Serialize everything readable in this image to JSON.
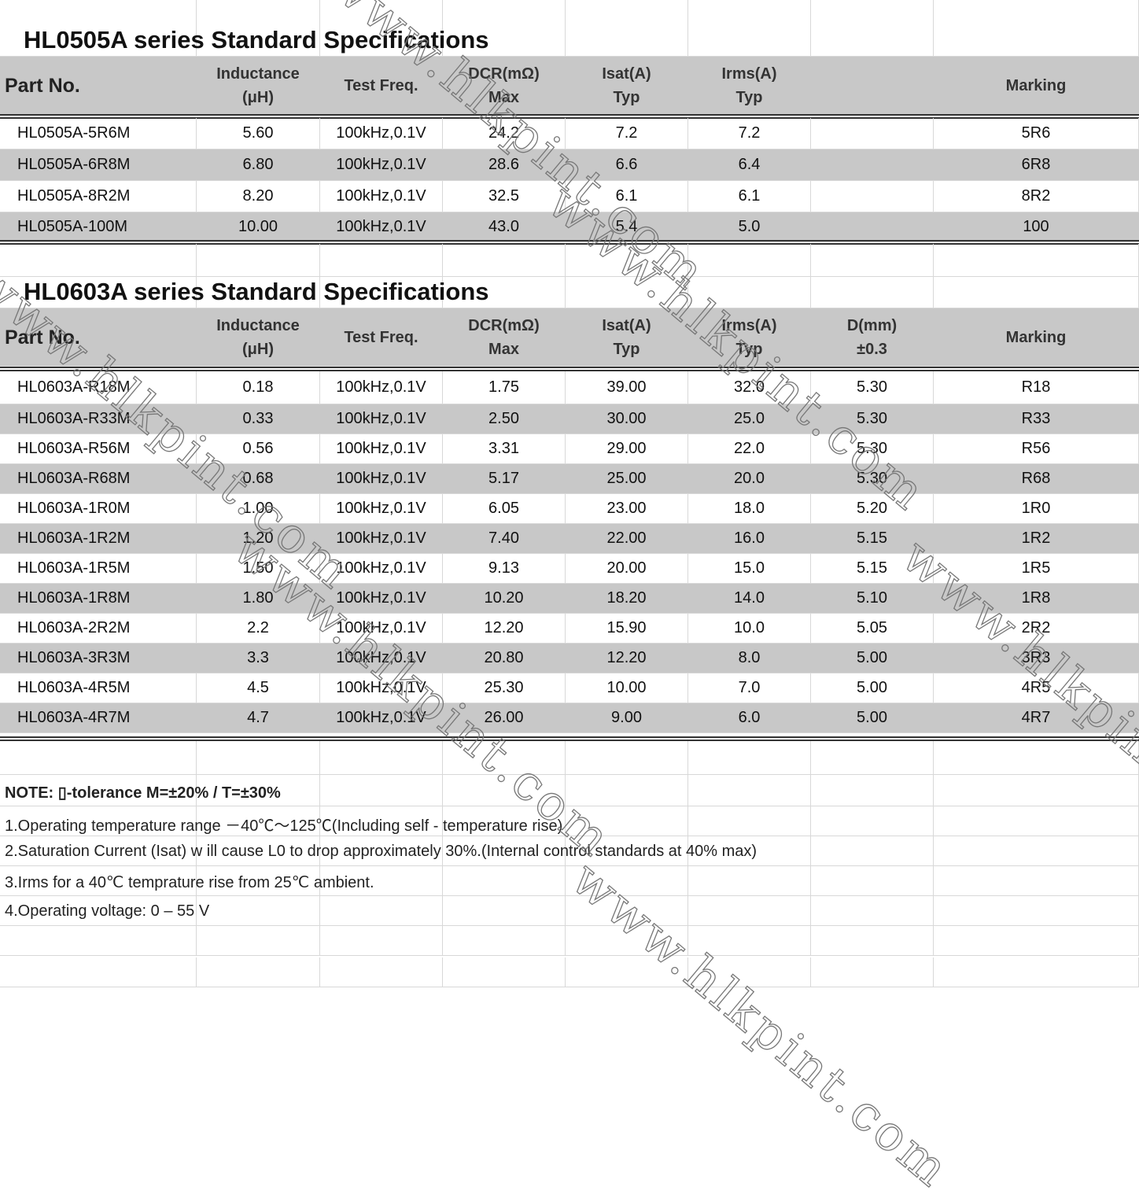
{
  "columns_0505": [
    "Part No.",
    "Inductance\n(μH)",
    "Test Freq.",
    "DCR(mΩ)\nMax",
    "Isat(A)\nTyp",
    "Irms(A)\nTyp",
    "",
    "Marking"
  ],
  "columns_0603": [
    "Part No.",
    "Inductance\n(μH)",
    "Test Freq.",
    "DCR(mΩ)\nMax",
    "Isat(A)\nTyp",
    "Irms(A)\nTyp",
    "D(mm)\n±0.3",
    "Marking"
  ],
  "table1": {
    "title": "HL0505A series  Standard Specifications",
    "rows": [
      [
        "HL0505A-5R6M",
        "5.60",
        "100kHz,0.1V",
        "24.2",
        "7.2",
        "7.2",
        "",
        "5R6"
      ],
      [
        "HL0505A-6R8M",
        "6.80",
        "100kHz,0.1V",
        "28.6",
        "6.6",
        "6.4",
        "",
        "6R8"
      ],
      [
        "HL0505A-8R2M",
        "8.20",
        "100kHz,0.1V",
        "32.5",
        "6.1",
        "6.1",
        "",
        "8R2"
      ],
      [
        "HL0505A-100M",
        "10.00",
        "100kHz,0.1V",
        "43.0",
        "5.4",
        "5.0",
        "",
        "100"
      ]
    ]
  },
  "table2": {
    "title": "HL0603A series  Standard Specifications",
    "rows": [
      [
        "HL0603A-R18M",
        "0.18",
        "100kHz,0.1V",
        "1.75",
        "39.00",
        "32.0",
        "5.30",
        "R18"
      ],
      [
        "HL0603A-R33M",
        "0.33",
        "100kHz,0.1V",
        "2.50",
        "30.00",
        "25.0",
        "5.30",
        "R33"
      ],
      [
        "HL0603A-R56M",
        "0.56",
        "100kHz,0.1V",
        "3.31",
        "29.00",
        "22.0",
        "5.30",
        "R56"
      ],
      [
        "HL0603A-R68M",
        "0.68",
        "100kHz,0.1V",
        "5.17",
        "25.00",
        "20.0",
        "5.30",
        "R68"
      ],
      [
        "HL0603A-1R0M",
        "1.00",
        "100kHz,0.1V",
        "6.05",
        "23.00",
        "18.0",
        "5.20",
        "1R0"
      ],
      [
        "HL0603A-1R2M",
        "1.20",
        "100kHz,0.1V",
        "7.40",
        "22.00",
        "16.0",
        "5.15",
        "1R2"
      ],
      [
        "HL0603A-1R5M",
        "1.50",
        "100kHz,0.1V",
        "9.13",
        "20.00",
        "15.0",
        "5.15",
        "1R5"
      ],
      [
        "HL0603A-1R8M",
        "1.80",
        "100kHz,0.1V",
        "10.20",
        "18.20",
        "14.0",
        "5.10",
        "1R8"
      ],
      [
        "HL0603A-2R2M",
        "2.2",
        "100kHz,0.1V",
        "12.20",
        "15.90",
        "10.0",
        "5.05",
        "2R2"
      ],
      [
        "HL0603A-3R3M",
        "3.3",
        "100kHz,0.1V",
        "20.80",
        "12.20",
        "8.0",
        "5.00",
        "3R3"
      ],
      [
        "HL0603A-4R5M",
        "4.5",
        "100kHz,0.1V",
        "25.30",
        "10.00",
        "7.0",
        "5.00",
        "4R5"
      ],
      [
        "HL0603A-4R7M",
        "4.7",
        "100kHz,0.1V",
        "26.00",
        "9.00",
        "6.0",
        "5.00",
        "4R7"
      ]
    ]
  },
  "notes": {
    "header": "NOTE:   ▯-tolerance   M=±20% / T=±30%",
    "items": [
      "1.Operating temperature range －40℃～125℃(Including self - temperature rise)",
      "2.Saturation Current (Isat) w ill cause L0 to drop approximately 30%.(Internal control standards at 40% max)",
      "3.Irms for a 40℃ temprature rise from 25℃ ambient.",
      "4.Operating voltage: 0 – 55 V"
    ]
  },
  "watermark": "www.hlkpint.com"
}
